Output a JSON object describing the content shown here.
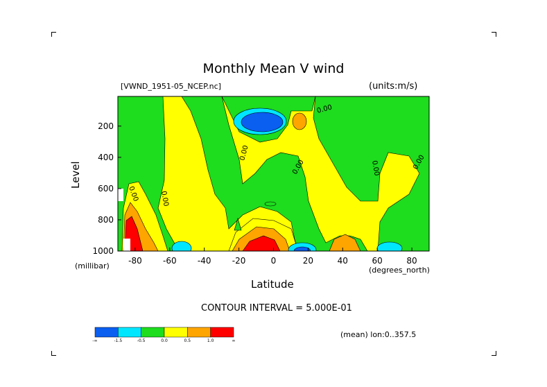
{
  "title": "Monthly Mean V wind",
  "dataset_label": "[VWND_1951-05_NCEP.nc]",
  "units_label": "(units:m/s)",
  "footer": {
    "contour_interval": "CONTOUR INTERVAL = 5.000E-01",
    "mean_label": "(mean) lon:0..357.5"
  },
  "chart_data": {
    "type": "heatmap",
    "title": "Monthly Mean V wind",
    "xlabel": "Latitude",
    "xunits": "(degrees_north)",
    "ylabel": "Level",
    "yunits": "(millibar)",
    "xlim": [
      -90,
      90
    ],
    "ylim": [
      1000,
      10
    ],
    "x_ticks": [
      -80,
      -60,
      -40,
      -20,
      0,
      20,
      40,
      60,
      80
    ],
    "x_tick_labels": [
      "-80",
      "-60",
      "-40",
      "-20",
      "0",
      "20",
      "40",
      "60",
      "80"
    ],
    "y_ticks": [
      200,
      400,
      600,
      800,
      1000
    ],
    "y_tick_labels": [
      "200",
      "400",
      "600",
      "800",
      "1000"
    ],
    "contour_labels": [
      "0.00"
    ],
    "colorbar": {
      "boundaries": [
        -1.5,
        -0.5,
        0.0,
        0.5,
        1.0
      ],
      "tick_labels": [
        "-∞",
        "-1.5",
        "-0.5",
        "0.0",
        "0.5",
        "1.0",
        "∞"
      ],
      "colors": [
        "#0a5ef0",
        "#00e6ff",
        "#1edc1e",
        "#ffff00",
        "#ffa500",
        "#ff0000"
      ]
    }
  }
}
